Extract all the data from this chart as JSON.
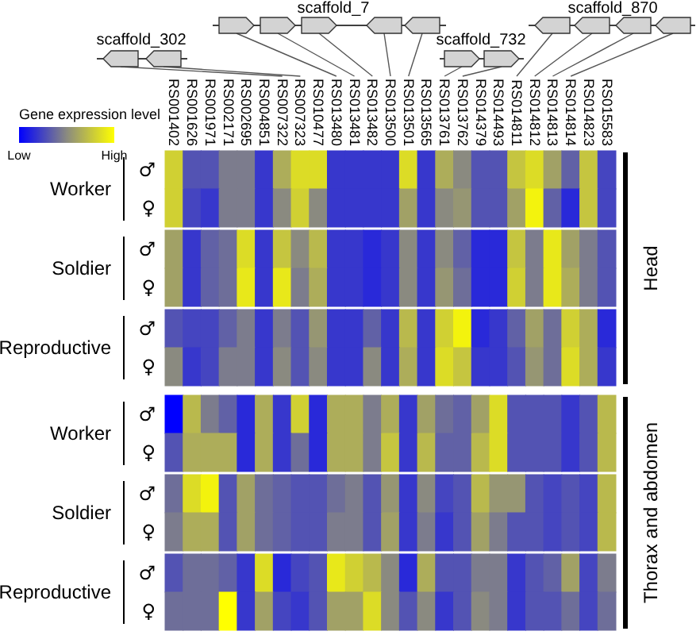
{
  "chart_data": {
    "type": "heatmap",
    "clabel": "Gene expression level",
    "clim": [
      0,
      1
    ],
    "cticks": [
      {
        "value": 0,
        "label": "Low"
      },
      {
        "value": 1,
        "label": "High"
      }
    ],
    "categories": [
      "RS001402",
      "RS001626",
      "RS001971",
      "RS002171",
      "RS002695",
      "RS004851",
      "RS007322",
      "RS007323",
      "RS010477",
      "RS013480",
      "RS013481",
      "RS013482",
      "RS013500",
      "RS013501",
      "RS013565",
      "RS013761",
      "RS013762",
      "RS014379",
      "RS014493",
      "RS014811",
      "RS014812",
      "RS014813",
      "RS014814",
      "RS014823",
      "RS015583"
    ],
    "y_categories": [
      "♂",
      "♀",
      "♂",
      "♀",
      "♂",
      "♀",
      "♂",
      "♀",
      "♂",
      "♀",
      "♂",
      "♀"
    ],
    "cells": [
      [
        0.8,
        0.3,
        0.3,
        0.45,
        0.45,
        0.2,
        0.65,
        0.85,
        0.85,
        0.2,
        0.2,
        0.2,
        0.2,
        0.85,
        0.2,
        0.65,
        0.5,
        0.3,
        0.3,
        0.75,
        0.85,
        0.6,
        0.35,
        0.75,
        0.25
      ],
      [
        0.8,
        0.25,
        0.2,
        0.45,
        0.45,
        0.2,
        0.5,
        0.8,
        0.5,
        0.2,
        0.2,
        0.2,
        0.2,
        0.6,
        0.2,
        0.5,
        0.55,
        0.3,
        0.3,
        0.6,
        0.95,
        0.35,
        0.15,
        0.75,
        0.25
      ],
      [
        0.6,
        0.2,
        0.35,
        0.4,
        0.85,
        0.2,
        0.75,
        0.5,
        0.7,
        0.2,
        0.2,
        0.15,
        0.2,
        0.5,
        0.2,
        0.5,
        0.35,
        0.15,
        0.15,
        0.75,
        0.45,
        0.9,
        0.6,
        0.45,
        0.3
      ],
      [
        0.6,
        0.2,
        0.35,
        0.4,
        0.9,
        0.2,
        0.9,
        0.45,
        0.65,
        0.2,
        0.2,
        0.15,
        0.2,
        0.5,
        0.2,
        0.55,
        0.4,
        0.15,
        0.15,
        0.8,
        0.45,
        0.9,
        0.65,
        0.45,
        0.3
      ],
      [
        0.3,
        0.25,
        0.25,
        0.35,
        0.45,
        0.2,
        0.45,
        0.3,
        0.55,
        0.2,
        0.2,
        0.35,
        0.2,
        0.7,
        0.2,
        0.8,
        0.95,
        0.15,
        0.2,
        0.35,
        0.6,
        0.4,
        0.8,
        0.65,
        0.15
      ],
      [
        0.5,
        0.2,
        0.25,
        0.45,
        0.45,
        0.2,
        0.5,
        0.3,
        0.5,
        0.2,
        0.2,
        0.5,
        0.2,
        0.65,
        0.2,
        0.85,
        0.75,
        0.2,
        0.2,
        0.3,
        0.55,
        0.4,
        0.85,
        0.65,
        0.2
      ],
      [
        0,
        0.7,
        0.45,
        0.35,
        0.15,
        0.65,
        0.2,
        0.8,
        0.15,
        0.65,
        0.65,
        0.45,
        0.65,
        0.2,
        0.6,
        0.4,
        0.35,
        0.6,
        0.85,
        0.3,
        0.3,
        0.3,
        0.2,
        0.3,
        0.7
      ],
      [
        0.3,
        0.65,
        0.65,
        0.65,
        0.15,
        0.65,
        0.2,
        0.4,
        0.15,
        0.65,
        0.65,
        0.45,
        0.75,
        0.2,
        0.7,
        0.35,
        0.35,
        0.7,
        0.85,
        0.3,
        0.3,
        0.3,
        0.2,
        0.3,
        0.7
      ],
      [
        0.4,
        0.85,
        0.95,
        0.3,
        0.6,
        0.4,
        0.35,
        0.3,
        0.3,
        0.4,
        0.45,
        0.3,
        0.55,
        0.2,
        0.5,
        0.25,
        0.3,
        0.7,
        0.55,
        0.55,
        0.3,
        0.25,
        0.3,
        0.25,
        0.7
      ],
      [
        0.45,
        0.65,
        0.65,
        0.3,
        0.6,
        0.4,
        0.35,
        0.3,
        0.3,
        0.45,
        0.45,
        0.3,
        0.6,
        0.2,
        0.45,
        0.2,
        0.3,
        0.6,
        0.45,
        0.3,
        0.3,
        0.25,
        0.3,
        0.25,
        0.7
      ],
      [
        0.3,
        0.4,
        0.4,
        0.35,
        0.2,
        0.85,
        0.15,
        0.25,
        0.3,
        0.9,
        0.8,
        0.7,
        0.5,
        0.15,
        0.65,
        0.3,
        0.3,
        0.45,
        0.45,
        0.2,
        0.3,
        0.35,
        0.6,
        0.25,
        0.45
      ],
      [
        0.4,
        0.4,
        0.4,
        1,
        0.2,
        0.6,
        0.25,
        0.2,
        0.3,
        0.6,
        0.6,
        0.85,
        0.5,
        0.3,
        0.5,
        0.2,
        0.3,
        0.5,
        0.45,
        0.2,
        0.3,
        0.3,
        0.4,
        0.25,
        0.4
      ]
    ],
    "annotations": [
      "Worker",
      "Soldier",
      "Reproductive",
      "Worker",
      "Soldier",
      "Reproductive",
      "Head",
      "Thorax and abdomen",
      "scaffold_302",
      "scaffold_7",
      "scaffold_732",
      "scaffold_870"
    ]
  }
}
